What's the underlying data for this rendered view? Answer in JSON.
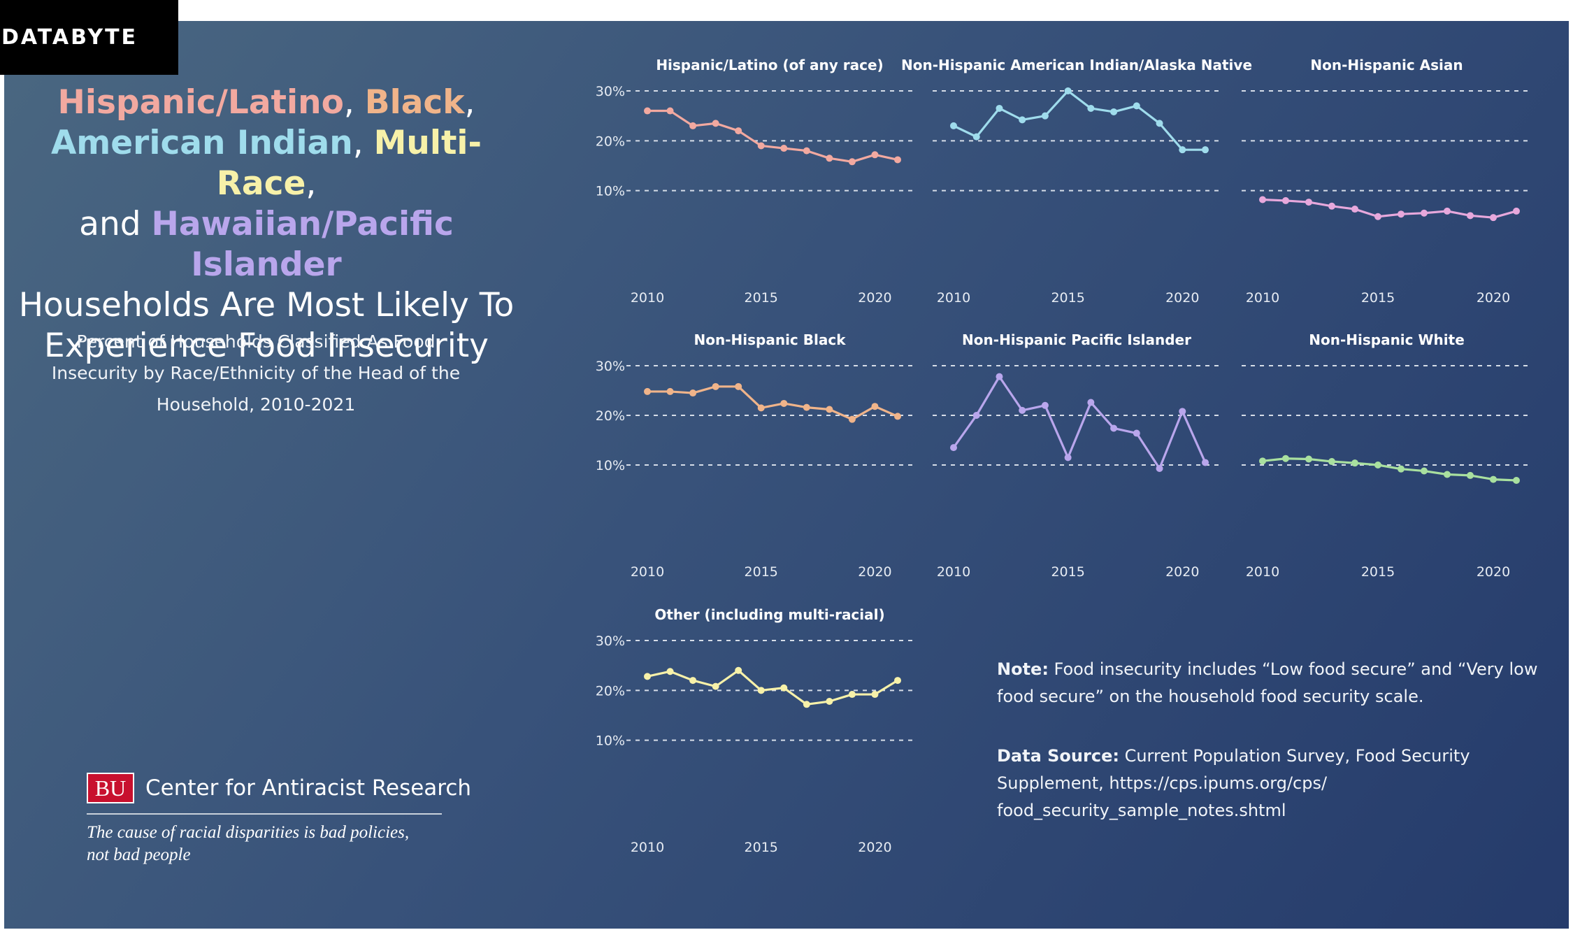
{
  "brand": {
    "label": "DATABYTE"
  },
  "headline": {
    "parts": [
      {
        "text": "Hispanic/Latino",
        "color": "#f2a9a0",
        "bold": true
      },
      {
        "text": ", ",
        "color": "#ffffff",
        "bold": false
      },
      {
        "text": "Black",
        "color": "#f0b48a",
        "bold": true
      },
      {
        "text": ",",
        "color": "#ffffff",
        "bold": false
      },
      {
        "text": "\n",
        "color": "#ffffff",
        "bold": false
      },
      {
        "text": "American Indian",
        "color": "#9fdcec",
        "bold": true
      },
      {
        "text": ", ",
        "color": "#ffffff",
        "bold": false
      },
      {
        "text": "Multi-Race",
        "color": "#f7f1a9",
        "bold": true
      },
      {
        "text": ",",
        "color": "#ffffff",
        "bold": false
      },
      {
        "text": "\n",
        "color": "#ffffff",
        "bold": false
      },
      {
        "text": "and ",
        "color": "#ffffff",
        "bold": false
      },
      {
        "text": "Hawaiian/Pacific Islander",
        "color": "#b9a6ec",
        "bold": true
      },
      {
        "text": "\n",
        "color": "#ffffff",
        "bold": false
      },
      {
        "text": "Households Are Most Likely To",
        "color": "#ffffff",
        "bold": false
      },
      {
        "text": "\n",
        "color": "#ffffff",
        "bold": false
      },
      {
        "text": "Experience Food Insecurity",
        "color": "#ffffff",
        "bold": false
      }
    ]
  },
  "subtitle": {
    "line1": "Percent of Households Classified As Food",
    "line2": "Insecurity by Race/Ethnicity of the Head of the",
    "line3": "Household, 2010-2021"
  },
  "logo": {
    "mark": "BU",
    "org": "Center for Antiracist Research",
    "tagline_line1": "The cause of racial disparities is bad policies,",
    "tagline_line2": "not bad people"
  },
  "notes": {
    "note_label": "Note:",
    "note_text": " Food insecurity includes “Low food secure” and “Very low food secure” on the household food security scale.",
    "source_label": "Data Source:",
    "source_text": " Current Population Survey, Food Security Supplement, https://cps.ipums.org/cps/ food_security_sample_notes.shtml"
  },
  "chart_data": [
    {
      "type": "line",
      "title": "Hispanic/Latino (of any race)",
      "color": "#f2a9a0",
      "x": [
        2010,
        2011,
        2012,
        2013,
        2014,
        2015,
        2016,
        2017,
        2018,
        2019,
        2020,
        2021
      ],
      "values": [
        26,
        26,
        23,
        23.5,
        22,
        19,
        18.5,
        18,
        16.5,
        15.8,
        17.2,
        16.2
      ],
      "ylim": [
        0,
        30
      ],
      "yticks": [
        "10%",
        "20%",
        "30%"
      ],
      "xticks": [
        "2010",
        "2015",
        "2020"
      ],
      "show_y_ticks": true
    },
    {
      "type": "line",
      "title": "Non-Hispanic American Indian/Alaska Native",
      "color": "#9fdcec",
      "x": [
        2010,
        2011,
        2012,
        2013,
        2014,
        2015,
        2016,
        2017,
        2018,
        2019,
        2020,
        2021
      ],
      "values": [
        23,
        20.8,
        26.5,
        24.2,
        25,
        30,
        26.5,
        25.8,
        27,
        23.5,
        18.2,
        18.2
      ],
      "ylim": [
        0,
        30
      ],
      "yticks": [
        "10%",
        "20%",
        "30%"
      ],
      "xticks": [
        "2010",
        "2015",
        "2020"
      ],
      "show_y_ticks": false
    },
    {
      "type": "line",
      "title": "Non-Hispanic Asian",
      "color": "#e7a8dc",
      "x": [
        2010,
        2011,
        2012,
        2013,
        2014,
        2015,
        2016,
        2017,
        2018,
        2019,
        2020,
        2021
      ],
      "values": [
        8.2,
        8,
        7.7,
        6.9,
        6.3,
        4.8,
        5.3,
        5.5,
        5.9,
        5,
        4.6,
        5.9
      ],
      "ylim": [
        0,
        30
      ],
      "yticks": [
        "10%",
        "20%",
        "30%"
      ],
      "xticks": [
        "2010",
        "2015",
        "2020"
      ],
      "show_y_ticks": false
    },
    {
      "type": "line",
      "title": "Non-Hispanic Black",
      "color": "#f0b48a",
      "x": [
        2010,
        2011,
        2012,
        2013,
        2014,
        2015,
        2016,
        2017,
        2018,
        2019,
        2020,
        2021
      ],
      "values": [
        24.8,
        24.8,
        24.5,
        25.8,
        25.8,
        21.5,
        22.4,
        21.6,
        21.2,
        19.2,
        21.8,
        19.8
      ],
      "ylim": [
        0,
        30
      ],
      "yticks": [
        "10%",
        "20%",
        "30%"
      ],
      "xticks": [
        "2010",
        "2015",
        "2020"
      ],
      "show_y_ticks": true
    },
    {
      "type": "line",
      "title": "Non-Hispanic Pacific Islander",
      "color": "#b9a6ec",
      "x": [
        2010,
        2011,
        2012,
        2013,
        2014,
        2015,
        2016,
        2017,
        2018,
        2019,
        2020,
        2021
      ],
      "values": [
        13.5,
        20,
        27.8,
        21,
        22,
        11.5,
        22.6,
        17.4,
        16.4,
        9.3,
        20.8,
        10.5
      ],
      "ylim": [
        0,
        30
      ],
      "yticks": [
        "10%",
        "20%",
        "30%"
      ],
      "xticks": [
        "2010",
        "2015",
        "2020"
      ],
      "show_y_ticks": false
    },
    {
      "type": "line",
      "title": "Non-Hispanic White",
      "color": "#a9e09f",
      "x": [
        2010,
        2011,
        2012,
        2013,
        2014,
        2015,
        2016,
        2017,
        2018,
        2019,
        2020,
        2021
      ],
      "values": [
        10.8,
        11.3,
        11.2,
        10.7,
        10.4,
        10,
        9.2,
        8.8,
        8.1,
        7.9,
        7.1,
        6.9
      ],
      "ylim": [
        0,
        30
      ],
      "yticks": [
        "10%",
        "20%",
        "30%"
      ],
      "xticks": [
        "2010",
        "2015",
        "2020"
      ],
      "show_y_ticks": false
    },
    {
      "type": "line",
      "title": "Other (including multi-racial)",
      "color": "#f7f1a9",
      "x": [
        2010,
        2011,
        2012,
        2013,
        2014,
        2015,
        2016,
        2017,
        2018,
        2019,
        2020,
        2021
      ],
      "values": [
        22.8,
        23.8,
        22,
        20.8,
        24,
        20,
        20.5,
        17.2,
        17.8,
        19.2,
        19.2,
        22
      ],
      "ylim": [
        0,
        30
      ],
      "yticks": [
        "10%",
        "20%",
        "30%"
      ],
      "xticks": [
        "2010",
        "2015",
        "2020"
      ],
      "show_y_ticks": true
    }
  ]
}
